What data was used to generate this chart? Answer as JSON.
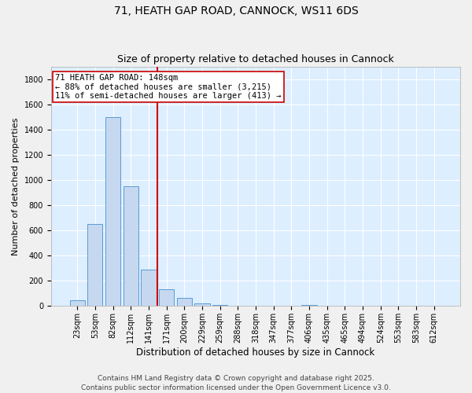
{
  "title_line1": "71, HEATH GAP ROAD, CANNOCK, WS11 6DS",
  "title_line2": "Size of property relative to detached houses in Cannock",
  "xlabel": "Distribution of detached houses by size in Cannock",
  "ylabel": "Number of detached properties",
  "categories": [
    "23sqm",
    "53sqm",
    "82sqm",
    "112sqm",
    "141sqm",
    "171sqm",
    "200sqm",
    "229sqm",
    "259sqm",
    "288sqm",
    "318sqm",
    "347sqm",
    "377sqm",
    "406sqm",
    "435sqm",
    "465sqm",
    "494sqm",
    "524sqm",
    "553sqm",
    "583sqm",
    "612sqm"
  ],
  "values": [
    45,
    650,
    1500,
    950,
    290,
    135,
    65,
    20,
    10,
    5,
    3,
    2,
    1,
    10,
    0,
    0,
    0,
    0,
    0,
    0,
    0
  ],
  "bar_color": "#c5d8f0",
  "bar_edge_color": "#5a9bd4",
  "vline_x_idx": 4.5,
  "vline_color": "#cc0000",
  "annotation_line1": "71 HEATH GAP ROAD: 148sqm",
  "annotation_line2": "← 88% of detached houses are smaller (3,215)",
  "annotation_line3": "11% of semi-detached houses are larger (413) →",
  "annotation_box_color": "#ffffff",
  "annotation_box_edge": "#cc0000",
  "ylim": [
    0,
    1900
  ],
  "yticks": [
    0,
    200,
    400,
    600,
    800,
    1000,
    1200,
    1400,
    1600,
    1800
  ],
  "background_color": "#ddeeff",
  "grid_color": "#ffffff",
  "footer_line1": "Contains HM Land Registry data © Crown copyright and database right 2025.",
  "footer_line2": "Contains public sector information licensed under the Open Government Licence v3.0.",
  "title_fontsize": 10,
  "subtitle_fontsize": 9,
  "xlabel_fontsize": 8.5,
  "ylabel_fontsize": 8,
  "tick_fontsize": 7,
  "footer_fontsize": 6.5,
  "annotation_fontsize": 7.5
}
